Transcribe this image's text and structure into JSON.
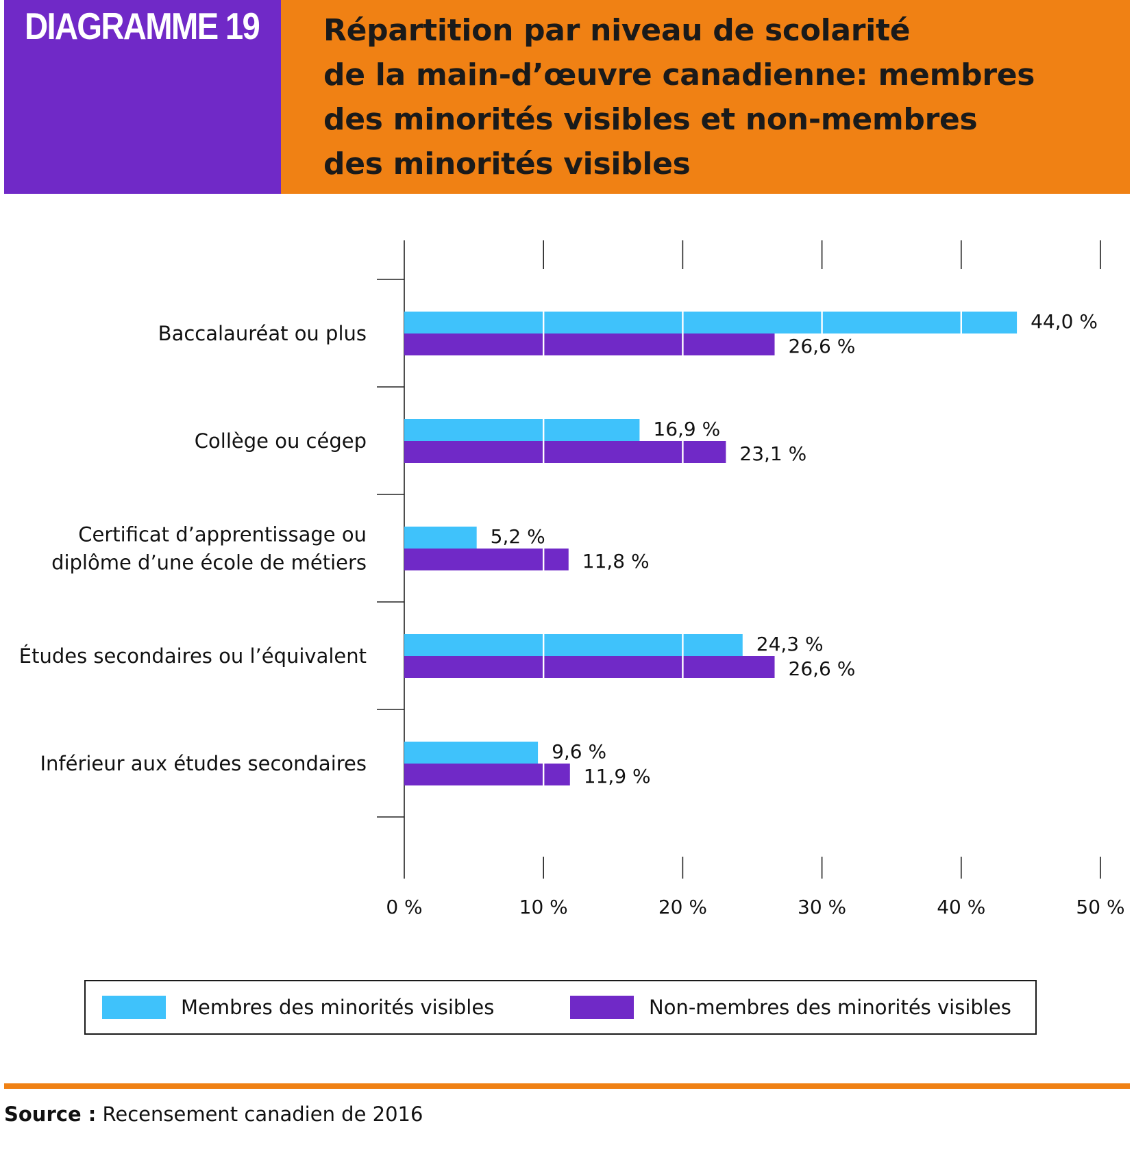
{
  "header": {
    "badge": "DIAGRAMME 19",
    "title_lines": [
      "Répartition par niveau de scolarité",
      "de la main-d’œuvre canadienne: membres",
      "des minorités visibles et non-membres",
      "des minorités visibles"
    ]
  },
  "colors": {
    "purple": "#7029c7",
    "orange": "#f08114",
    "cyan": "#3fc2fb"
  },
  "chart_data": {
    "type": "bar",
    "orientation": "horizontal",
    "title": "Répartition par niveau de scolarité de la main-d’œuvre canadienne: membres des minorités visibles et non-membres des minorités visibles",
    "categories": [
      [
        "Baccalauréat ou plus"
      ],
      [
        "Collège ou cégep"
      ],
      [
        "Certificat d’apprentissage ou",
        "diplôme d’une école de métiers"
      ],
      [
        "Études secondaires ou l’équivalent"
      ],
      [
        "Inférieur aux études secondaires"
      ]
    ],
    "series": [
      {
        "name": "Membres des minorités visibles",
        "color": "#3fc2fb",
        "values": [
          44.0,
          16.9,
          5.2,
          24.3,
          9.6
        ],
        "labels": [
          "44,0 %",
          "16,9 %",
          "5,2 %",
          "24,3 %",
          "9,6 %"
        ]
      },
      {
        "name": "Non-membres des minorités visibles",
        "color": "#7029c7",
        "values": [
          26.6,
          23.1,
          11.8,
          26.6,
          11.9
        ],
        "labels": [
          "26,6 %",
          "23,1 %",
          "11,8 %",
          "26,6 %",
          "11,9 %"
        ]
      }
    ],
    "xlim": [
      0,
      50
    ],
    "xticks": [
      0,
      10,
      20,
      30,
      40,
      50
    ],
    "xtick_labels": [
      "0 %",
      "10 %",
      "20 %",
      "30 %",
      "40 %",
      "50 %"
    ],
    "xlabel": "",
    "ylabel": "",
    "legend_position": "bottom"
  },
  "source": {
    "label": "Source :",
    "text": " Recensement canadien de 2016"
  }
}
